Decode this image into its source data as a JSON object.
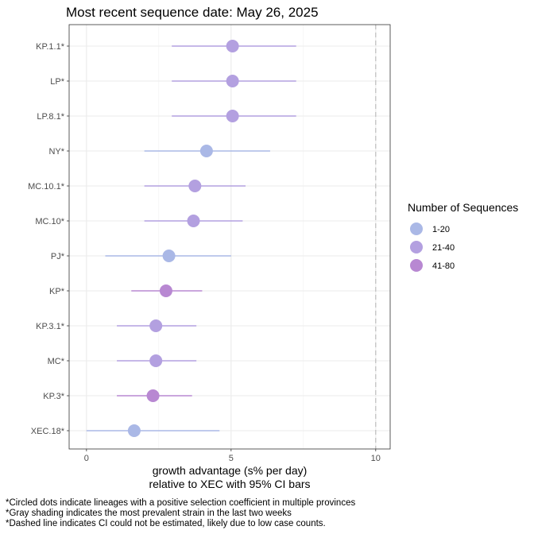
{
  "chart_data": {
    "type": "scatter",
    "title": "Most recent sequence date: May 26, 2025",
    "xlabel_line1": "growth advantage (s% per day)",
    "xlabel_line2": "relative to  XEC  with 95% CI bars",
    "xlim": [
      -0.6,
      10.5
    ],
    "xticks": [
      0,
      5,
      10
    ],
    "dashed_line_x": 10,
    "grid": true,
    "legend": {
      "title": "Number of Sequences",
      "placement": "right",
      "entries": [
        {
          "label": "1-20",
          "color": "#aab8e6"
        },
        {
          "label": "21-40",
          "color": "#b3a0e0"
        },
        {
          "label": "41-80",
          "color": "#b888d2"
        }
      ]
    },
    "points": [
      {
        "lineage": "KP.1.1*",
        "value": 5.05,
        "low": 2.95,
        "high": 7.25,
        "group": "21-40"
      },
      {
        "lineage": "LP*",
        "value": 5.05,
        "low": 2.95,
        "high": 7.25,
        "group": "21-40"
      },
      {
        "lineage": "LP.8.1*",
        "value": 5.05,
        "low": 2.95,
        "high": 7.25,
        "group": "21-40"
      },
      {
        "lineage": "NY*",
        "value": 4.15,
        "low": 2.0,
        "high": 6.35,
        "group": "1-20"
      },
      {
        "lineage": "MC.10.1*",
        "value": 3.75,
        "low": 2.0,
        "high": 5.5,
        "group": "21-40"
      },
      {
        "lineage": "MC.10*",
        "value": 3.7,
        "low": 2.0,
        "high": 5.4,
        "group": "21-40"
      },
      {
        "lineage": "PJ*",
        "value": 2.85,
        "low": 0.65,
        "high": 5.0,
        "group": "1-20"
      },
      {
        "lineage": "KP*",
        "value": 2.75,
        "low": 1.55,
        "high": 4.0,
        "group": "41-80"
      },
      {
        "lineage": "KP.3.1*",
        "value": 2.4,
        "low": 1.05,
        "high": 3.8,
        "group": "21-40"
      },
      {
        "lineage": "MC*",
        "value": 2.4,
        "low": 1.05,
        "high": 3.8,
        "group": "21-40"
      },
      {
        "lineage": "KP.3*",
        "value": 2.3,
        "low": 1.05,
        "high": 3.65,
        "group": "41-80"
      },
      {
        "lineage": "XEC.18*",
        "value": 1.65,
        "low": 0.0,
        "high": 4.6,
        "group": "1-20"
      }
    ]
  },
  "captions": [
    "*Circled dots indicate lineages with a positive selection coefficient in multiple provinces",
    "*Gray shading indicates the most prevalent strain in the last two weeks",
    "*Dashed line indicates CI could not be estimated, likely due to low case counts."
  ]
}
